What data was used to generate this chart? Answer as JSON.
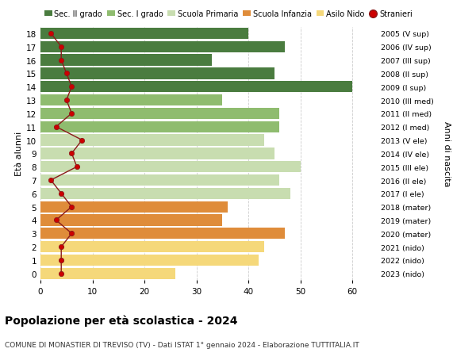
{
  "ages": [
    0,
    1,
    2,
    3,
    4,
    5,
    6,
    7,
    8,
    9,
    10,
    11,
    12,
    13,
    14,
    15,
    16,
    17,
    18
  ],
  "bar_values": [
    26,
    42,
    43,
    47,
    35,
    36,
    48,
    46,
    50,
    45,
    43,
    46,
    46,
    35,
    60,
    45,
    33,
    47,
    40
  ],
  "stranieri": [
    4,
    4,
    4,
    6,
    3,
    6,
    4,
    2,
    7,
    6,
    8,
    3,
    6,
    5,
    6,
    5,
    4,
    4,
    2
  ],
  "right_labels": [
    "2023 (nido)",
    "2022 (nido)",
    "2021 (nido)",
    "2020 (mater)",
    "2019 (mater)",
    "2018 (mater)",
    "2017 (I ele)",
    "2016 (II ele)",
    "2015 (III ele)",
    "2014 (IV ele)",
    "2013 (V ele)",
    "2012 (I med)",
    "2011 (II med)",
    "2010 (III med)",
    "2009 (I sup)",
    "2008 (II sup)",
    "2007 (III sup)",
    "2006 (IV sup)",
    "2005 (V sup)"
  ],
  "bar_colors": [
    "#f5d87a",
    "#f5d87a",
    "#f5d87a",
    "#df8c3a",
    "#df8c3a",
    "#df8c3a",
    "#c8ddb0",
    "#c8ddb0",
    "#c8ddb0",
    "#c8ddb0",
    "#c8ddb0",
    "#8fbc6f",
    "#8fbc6f",
    "#8fbc6f",
    "#4a7c3f",
    "#4a7c3f",
    "#4a7c3f",
    "#4a7c3f",
    "#4a7c3f"
  ],
  "legend_labels": [
    "Sec. II grado",
    "Sec. I grado",
    "Scuola Primaria",
    "Scuola Infanzia",
    "Asilo Nido",
    "Stranieri"
  ],
  "legend_colors": [
    "#4a7c3f",
    "#8fbc6f",
    "#c8ddb0",
    "#df8c3a",
    "#f5d87a",
    "#cc0000"
  ],
  "title": "Popolazione per età scolastica - 2024",
  "subtitle": "COMUNE DI MONASTIER DI TREVISO (TV) - Dati ISTAT 1° gennaio 2024 - Elaborazione TUTTITALIA.IT",
  "ylabel": "Età alunni",
  "right_ylabel": "Anni di nascita",
  "xlabel_values": [
    0,
    10,
    20,
    30,
    40,
    50,
    60
  ],
  "xlim": [
    0,
    65
  ],
  "ylim": [
    -0.5,
    18.5
  ],
  "background_color": "#ffffff",
  "grid_color": "#cccccc"
}
